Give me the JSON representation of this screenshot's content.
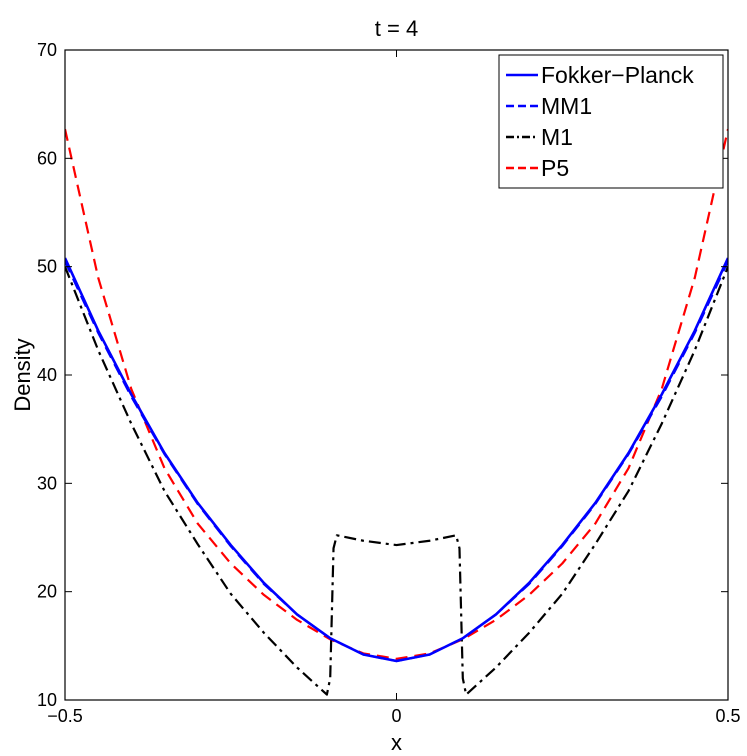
{
  "chart_data": {
    "type": "line",
    "title": "t = 4",
    "xlabel": "x",
    "ylabel": "Density",
    "xlim": [
      -0.5,
      0.5
    ],
    "ylim": [
      10,
      70
    ],
    "xticks": [
      -0.5,
      0,
      0.5
    ],
    "xtick_labels": [
      "−0.5",
      "0",
      "0.5"
    ],
    "yticks": [
      10,
      20,
      30,
      40,
      50,
      60,
      70
    ],
    "ytick_labels": [
      "10",
      "20",
      "30",
      "40",
      "50",
      "60",
      "70"
    ],
    "grid": false,
    "legend_position": "top-right",
    "series": [
      {
        "name": "Fokker−Planck",
        "color": "#0000ff",
        "style": "solid",
        "x": [
          -0.5,
          -0.45,
          -0.4,
          -0.35,
          -0.3,
          -0.25,
          -0.2,
          -0.15,
          -0.1,
          -0.05,
          0,
          0.05,
          0.1,
          0.15,
          0.2,
          0.25,
          0.3,
          0.35,
          0.4,
          0.45,
          0.5
        ],
        "y": [
          50.8,
          44.1,
          38.2,
          32.8,
          28.2,
          24.3,
          20.8,
          17.9,
          15.7,
          14.2,
          13.6,
          14.2,
          15.7,
          17.9,
          20.8,
          24.3,
          28.2,
          32.8,
          38.2,
          44.1,
          50.8
        ]
      },
      {
        "name": "MM1",
        "color": "#0000ff",
        "style": "dashed",
        "x": [
          -0.5,
          -0.45,
          -0.4,
          -0.35,
          -0.3,
          -0.25,
          -0.2,
          -0.15,
          -0.1,
          -0.05,
          0,
          0.05,
          0.1,
          0.15,
          0.2,
          0.25,
          0.3,
          0.35,
          0.4,
          0.45,
          0.5
        ],
        "y": [
          50.5,
          43.9,
          38.0,
          32.7,
          28.1,
          24.2,
          20.7,
          17.9,
          15.7,
          14.2,
          13.6,
          14.2,
          15.7,
          17.9,
          20.7,
          24.2,
          28.1,
          32.7,
          38.0,
          43.9,
          50.5
        ]
      },
      {
        "name": "M1",
        "color": "#000000",
        "style": "dashdot",
        "x": [
          -0.5,
          -0.45,
          -0.4,
          -0.35,
          -0.3,
          -0.25,
          -0.2,
          -0.15,
          -0.105,
          -0.1,
          -0.095,
          -0.09,
          -0.05,
          0,
          0.05,
          0.09,
          0.095,
          0.1,
          0.105,
          0.15,
          0.2,
          0.25,
          0.3,
          0.35,
          0.4,
          0.45,
          0.5
        ],
        "y": [
          50.0,
          42.3,
          35.5,
          29.3,
          24.4,
          19.8,
          16.2,
          13.0,
          10.5,
          12.0,
          24.0,
          25.2,
          24.7,
          24.3,
          24.7,
          25.2,
          24.0,
          12.0,
          10.5,
          13.0,
          16.2,
          19.8,
          24.4,
          29.3,
          35.5,
          42.3,
          50.0
        ]
      },
      {
        "name": "P5",
        "color": "#ff0000",
        "style": "dashed",
        "x": [
          -0.5,
          -0.45,
          -0.4,
          -0.35,
          -0.3,
          -0.25,
          -0.2,
          -0.15,
          -0.1,
          -0.05,
          0,
          0.05,
          0.1,
          0.15,
          0.2,
          0.25,
          0.3,
          0.35,
          0.4,
          0.45,
          0.5
        ],
        "y": [
          62.7,
          49.0,
          38.7,
          31.4,
          26.3,
          22.6,
          19.7,
          17.4,
          15.6,
          14.3,
          13.8,
          14.3,
          15.6,
          17.4,
          19.7,
          22.6,
          26.3,
          31.4,
          38.7,
          49.0,
          62.7
        ]
      }
    ]
  }
}
